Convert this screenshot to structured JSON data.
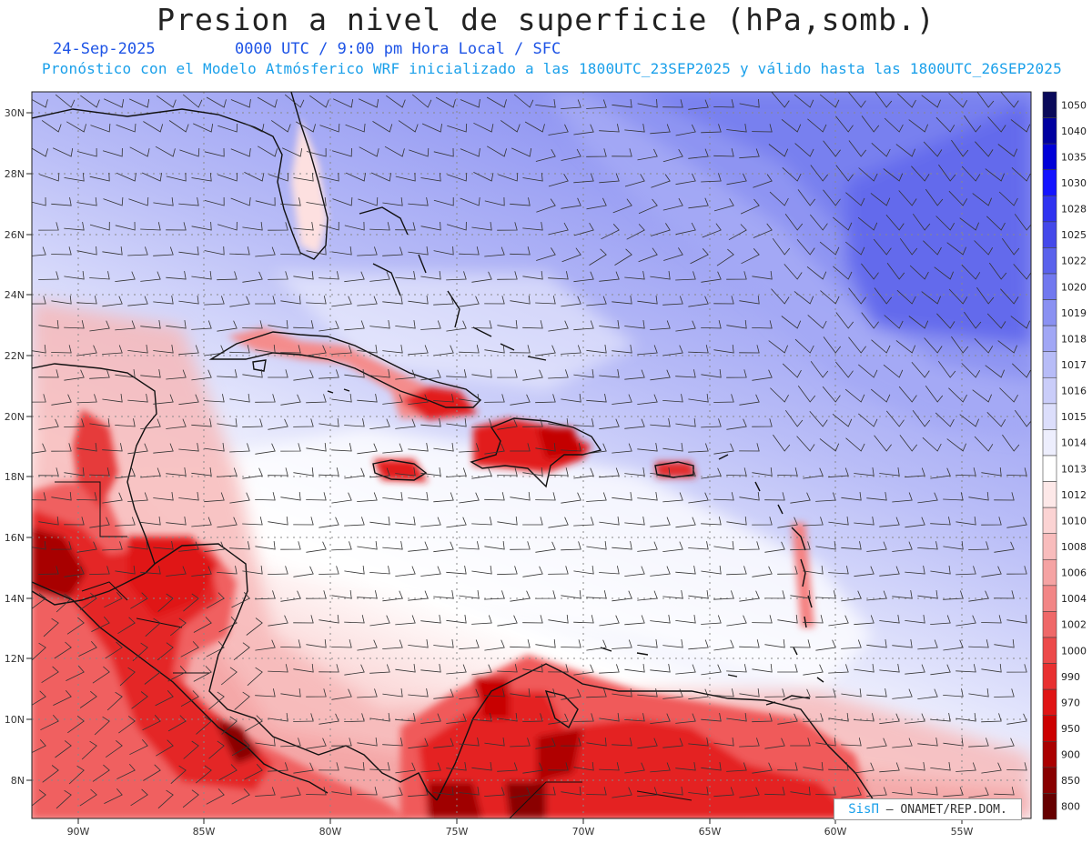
{
  "header": {
    "title": "Presion a nivel de superficie (hPa,somb.)",
    "date": "24-Sep-2025",
    "time_info": "0000 UTC / 9:00 pm Hora Local / SFC",
    "forecast_info": "Pronóstico con el Modelo Atmósferico WRF inicializado a las 1800UTC_23SEP2025 y válido hasta las  1800UTC_26SEP2025"
  },
  "map": {
    "lon_range": [
      -92,
      -52.3
    ],
    "lat_range": [
      6.8,
      30.5
    ],
    "lon_ticks": [
      "90W",
      "85W",
      "80W",
      "75W",
      "70W",
      "65W",
      "60W",
      "55W"
    ],
    "lat_ticks": [
      "30N",
      "28N",
      "26N",
      "24N",
      "22N",
      "20N",
      "18N",
      "16N",
      "14N",
      "12N",
      "10N",
      "8N"
    ],
    "grid": "dotted"
  },
  "colorbar": {
    "labels": [
      "1050",
      "1040",
      "1035",
      "1030",
      "1028",
      "1025",
      "1022",
      "1020",
      "1019",
      "1018",
      "1017",
      "1016",
      "1015",
      "1014",
      "1013",
      "1012",
      "1010",
      "1008",
      "1006",
      "1004",
      "1002",
      "1000",
      "990",
      "970",
      "950",
      "900",
      "850",
      "800"
    ],
    "colors": [
      "#0a0a5a",
      "#0000a0",
      "#0000d8",
      "#1414ff",
      "#2f33f0",
      "#4449ea",
      "#5a62ec",
      "#7178ef",
      "#8a91f2",
      "#a1a7f5",
      "#b7bcf7",
      "#cacdf9",
      "#dcdefb",
      "#edeefd",
      "#ffffff",
      "#fde8e8",
      "#fbd3d3",
      "#f8bcbc",
      "#f5a3a3",
      "#f28686",
      "#ef6868",
      "#ec4a4a",
      "#e83030",
      "#e01414",
      "#cc0000",
      "#aa0000",
      "#880000",
      "#660000"
    ]
  },
  "credit": {
    "brand": "SisΠ",
    "text": "– ONAMET/REP.DOM."
  }
}
